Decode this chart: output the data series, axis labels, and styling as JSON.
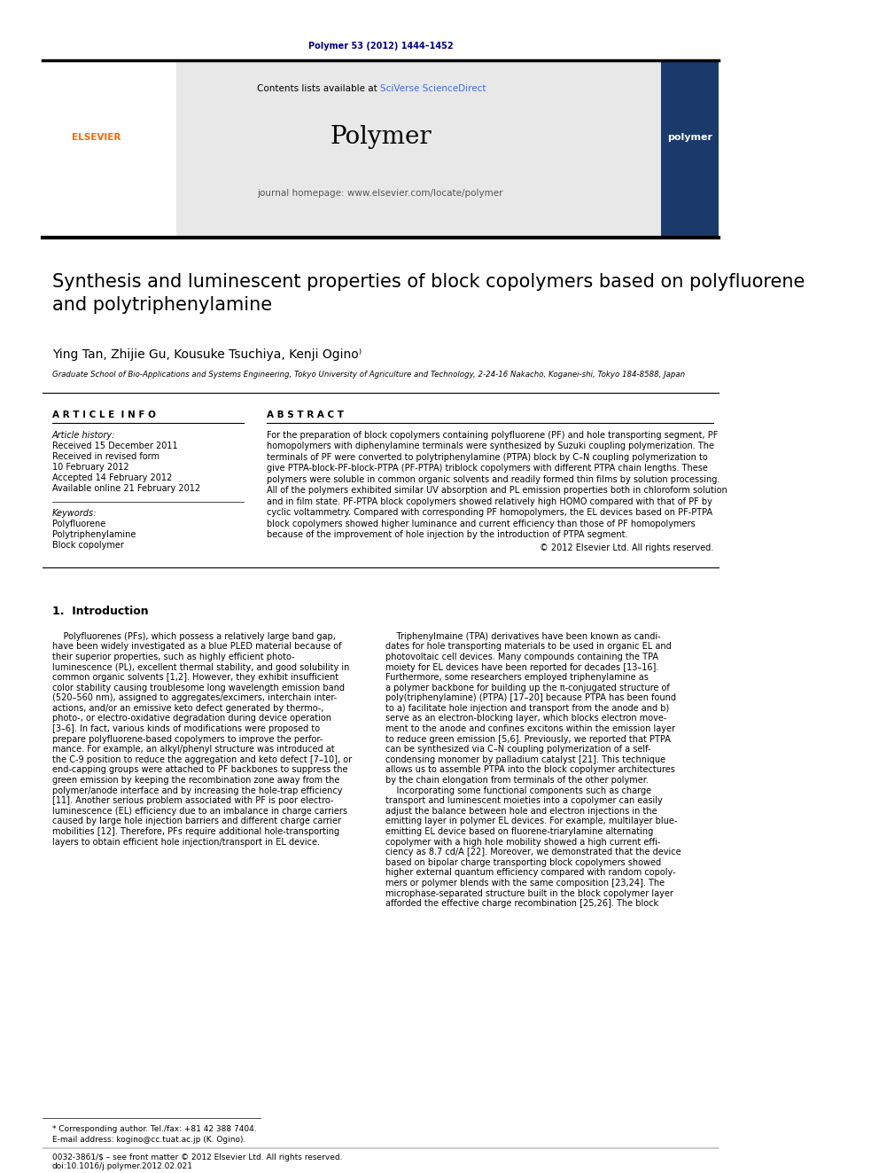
{
  "page_width": 9.92,
  "page_height": 13.23,
  "background_color": "#ffffff",
  "journal_ref": "Polymer 53 (2012) 1444–1452",
  "journal_ref_color": "#000080",
  "header_bg": "#e8e8e8",
  "header_text": "Contents lists available at ",
  "sciverse_text": "SciVerse ScienceDirect",
  "sciverse_color": "#4169E1",
  "journal_name": "Polymer",
  "journal_homepage_text": "journal homepage: www.elsevier.com/locate/polymer",
  "elsevier_color": "#FF6600",
  "article_title": "Synthesis and luminescent properties of block copolymers based on polyfluorene\nand polytriphenylamine",
  "authors": "Ying Tan, Zhijie Gu, Kousuke Tsuchiya, Kenji Ogino",
  "affiliation": "Graduate School of Bio-Applications and Systems Engineering, Tokyo University of Agriculture and Technology, 2-24-16 Nakacho, Koganei-shi, Tokyo 184-8588, Japan",
  "article_info_header": "A R T I C L E  I N F O",
  "abstract_header": "A B S T R A C T",
  "article_history_label": "Article history:",
  "received1": "Received 15 December 2011",
  "received2": "Received in revised form",
  "received2b": "10 February 2012",
  "accepted": "Accepted 14 February 2012",
  "available": "Available online 21 February 2012",
  "keywords_label": "Keywords:",
  "keyword1": "Polyfluorene",
  "keyword2": "Polytriphenylamine",
  "keyword3": "Block copolymer",
  "copyright": "© 2012 Elsevier Ltd. All rights reserved.",
  "intro_header": "1.  Introduction",
  "footnote1": "* Corresponding author. Tel./fax: +81 42 388 7404.",
  "footnote2": "E-mail address: kogino@cc.tuat.ac.jp (K. Ogino).",
  "footnote3": "0032-3861/$ – see front matter © 2012 Elsevier Ltd. All rights reserved.",
  "footnote4": "doi:10.1016/j.polymer.2012.02.021"
}
